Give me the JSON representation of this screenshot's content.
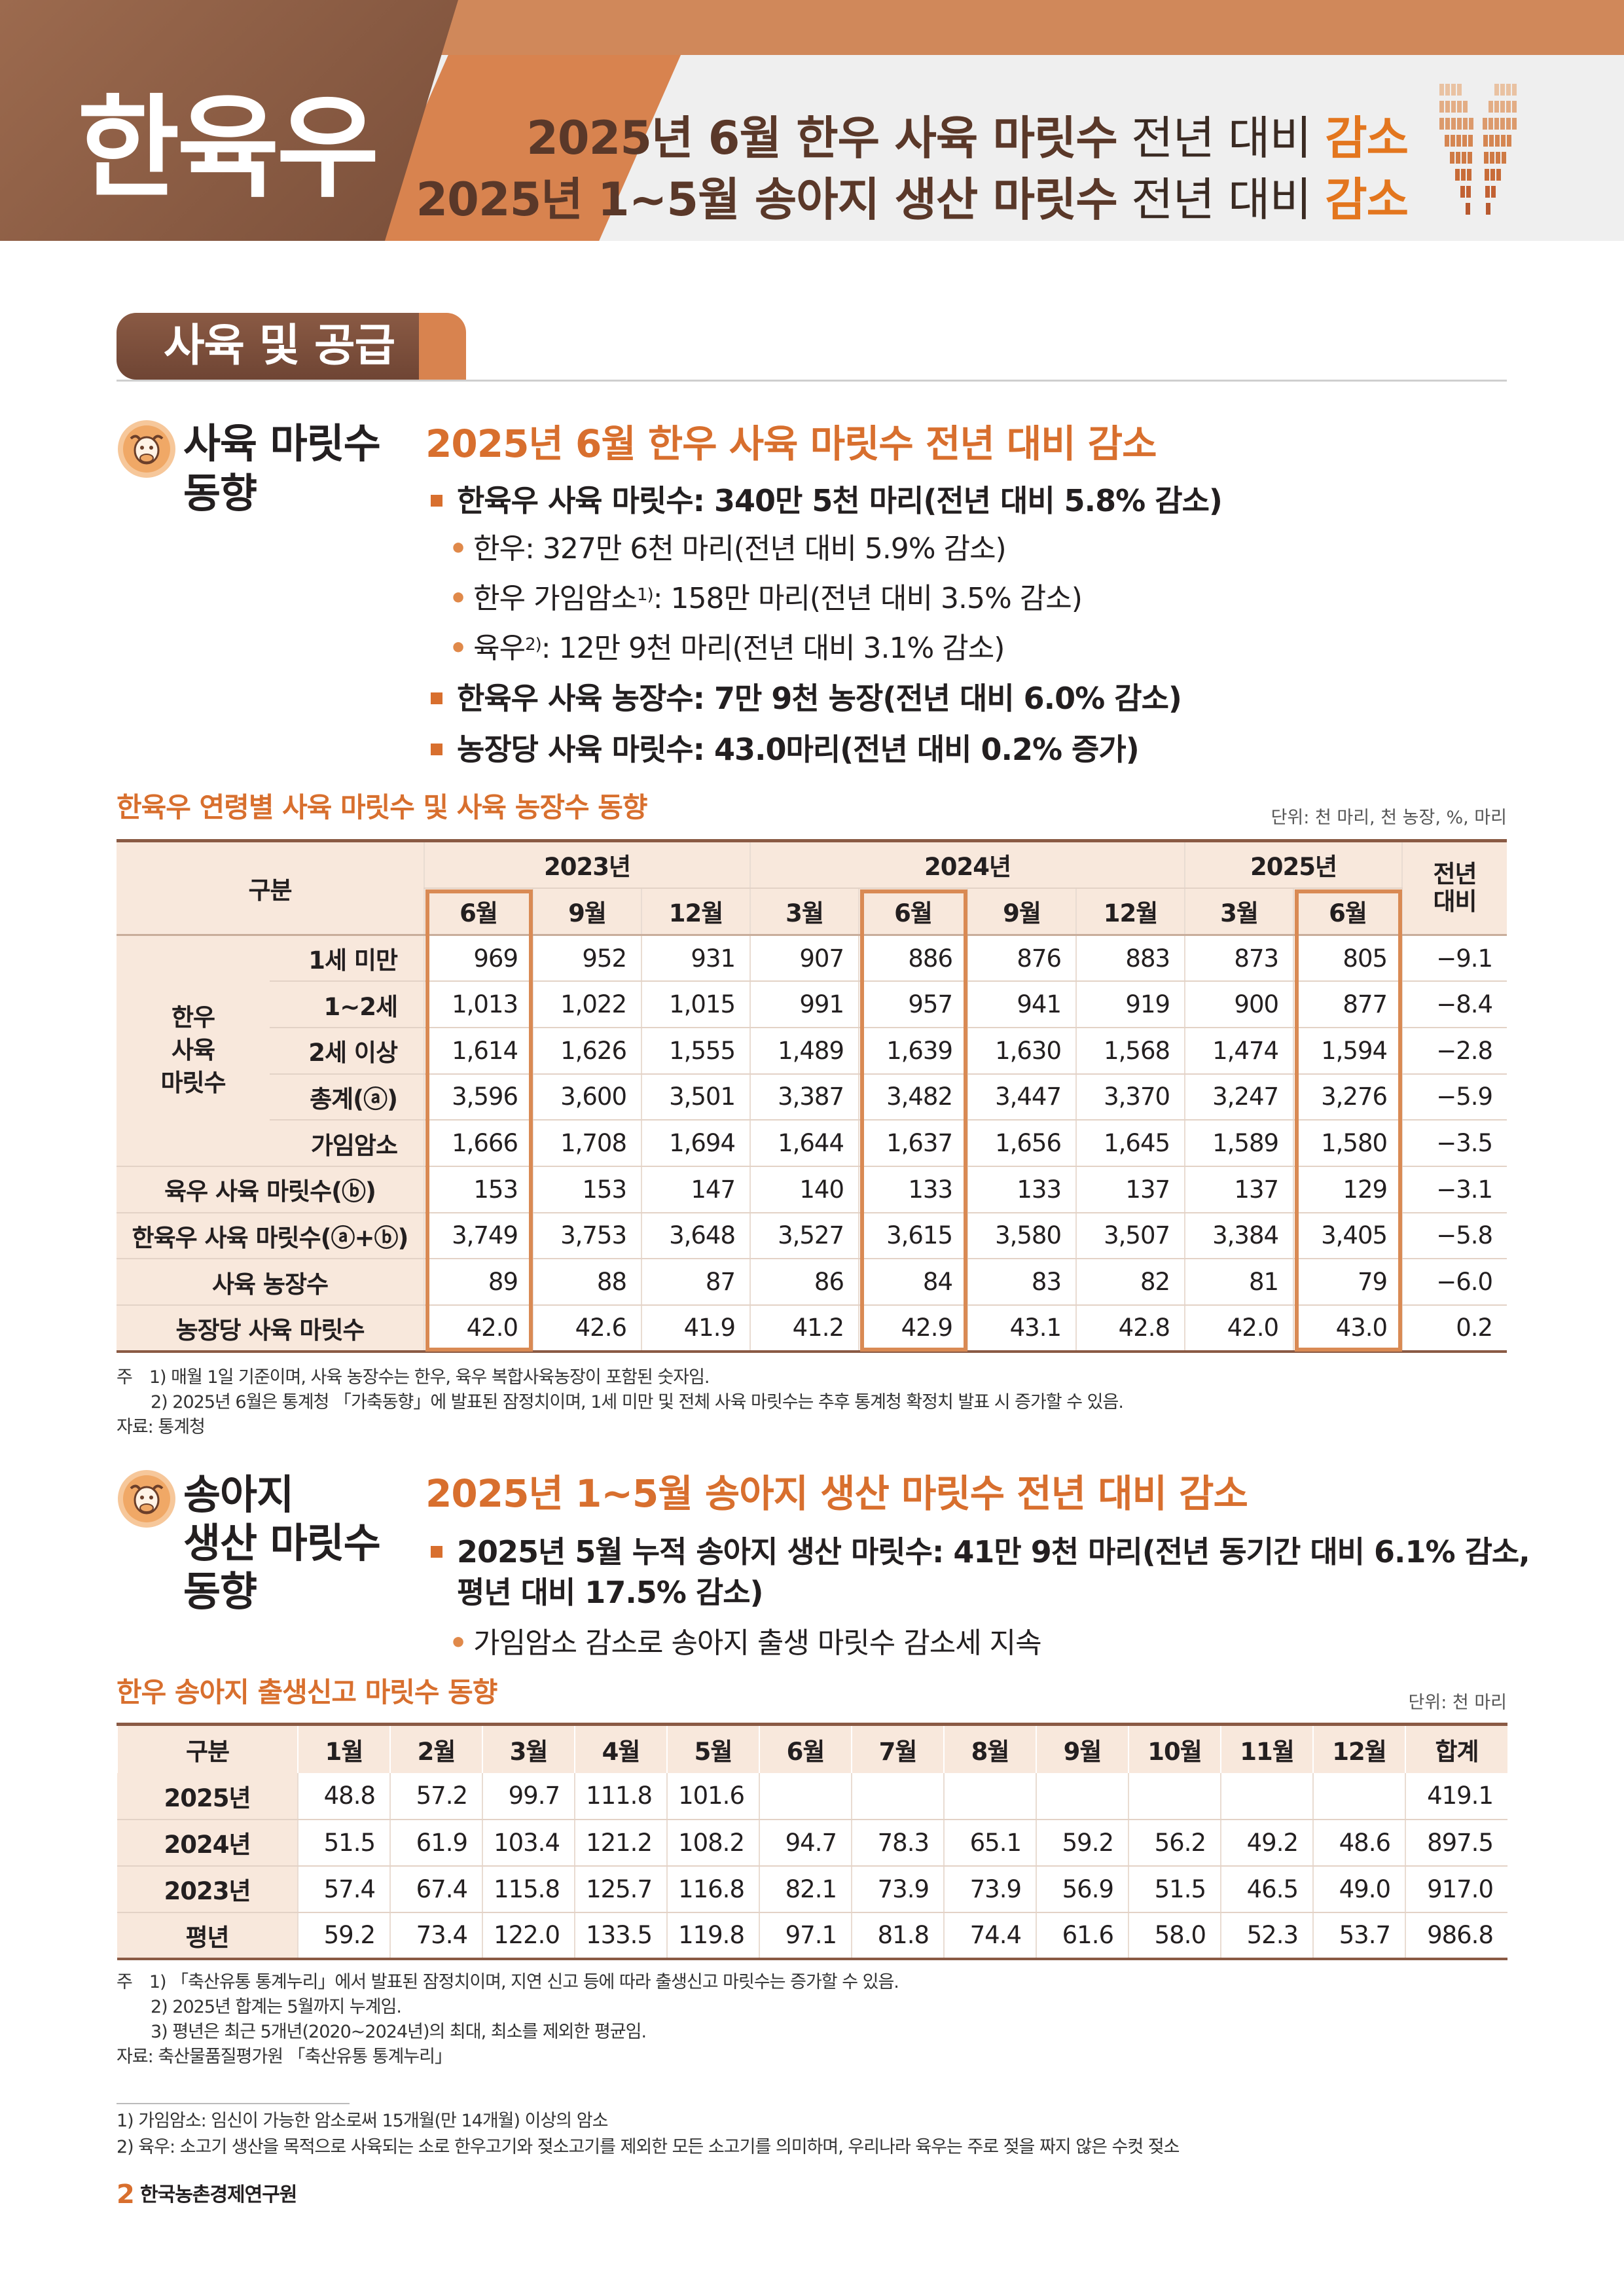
{
  "banner": {
    "brand": "한육우",
    "line1": {
      "bold": "2025년 6월 한우 사육 마릿수",
      "light": " 전년 대비 ",
      "hl": "감소"
    },
    "line2": {
      "bold": "2025년 1~5월 송아지 생산 마릿수",
      "light": " 전년 대비 ",
      "hl": "감소"
    }
  },
  "section": {
    "tag": "사육 및 공급"
  },
  "sub1": {
    "title_l1": "사육 마릿수",
    "title_l2": "동향",
    "headline": "2025년 6월 한우 사육 마릿수 전년 대비 감소",
    "b1": "한육우 사육 마릿수: 340만 5천 마리(전년 대비 5.8% 감소)",
    "s1": "한우: 327만 6천 마리(전년 대비 5.9% 감소)",
    "s2_a": "한우 가임암소",
    "s2_sup": "1)",
    "s2_b": ": 158만 마리(전년 대비 3.5% 감소)",
    "s3_a": "육우",
    "s3_sup": "2)",
    "s3_b": ": 12만 9천 마리(전년 대비 3.1% 감소)",
    "b2": "한육우 사육 농장수: 7만 9천 농장(전년 대비 6.0% 감소)",
    "b3": "농장당 사육 마릿수: 43.0마리(전년 대비 0.2% 증가)"
  },
  "table1": {
    "caption": "한육우 연령별 사육 마릿수 및 사육 농장수 동향",
    "unit": "단위: 천 마리, 천 농장, %, 마리",
    "corner": "구분",
    "years": [
      "2023년",
      "2024년",
      "2025년"
    ],
    "yoy_l1": "전년",
    "yoy_l2": "대비",
    "months": [
      "6월",
      "9월",
      "12월",
      "3월",
      "6월",
      "9월",
      "12월",
      "3월",
      "6월"
    ],
    "group_label": [
      "한우",
      "사육",
      "마릿수"
    ],
    "rows": [
      {
        "label": "1세 미만",
        "values": [
          "969",
          "952",
          "931",
          "907",
          "886",
          "876",
          "883",
          "873",
          "805"
        ],
        "yoy": "−9.1"
      },
      {
        "label": "1∼2세",
        "values": [
          "1,013",
          "1,022",
          "1,015",
          "991",
          "957",
          "941",
          "919",
          "900",
          "877"
        ],
        "yoy": "−8.4"
      },
      {
        "label": "2세 이상",
        "values": [
          "1,614",
          "1,626",
          "1,555",
          "1,489",
          "1,639",
          "1,630",
          "1,568",
          "1,474",
          "1,594"
        ],
        "yoy": "−2.8"
      },
      {
        "label": "총계(ⓐ)",
        "values": [
          "3,596",
          "3,600",
          "3,501",
          "3,387",
          "3,482",
          "3,447",
          "3,370",
          "3,247",
          "3,276"
        ],
        "yoy": "−5.9"
      },
      {
        "label": "가임암소",
        "values": [
          "1,666",
          "1,708",
          "1,694",
          "1,644",
          "1,637",
          "1,656",
          "1,645",
          "1,589",
          "1,580"
        ],
        "yoy": "−3.5"
      },
      {
        "label": "육우 사육 마릿수(ⓑ)",
        "values": [
          "153",
          "153",
          "147",
          "140",
          "133",
          "133",
          "137",
          "137",
          "129"
        ],
        "yoy": "−3.1"
      },
      {
        "label": "한육우 사육 마릿수(ⓐ+ⓑ)",
        "values": [
          "3,749",
          "3,753",
          "3,648",
          "3,527",
          "3,615",
          "3,580",
          "3,507",
          "3,384",
          "3,405"
        ],
        "yoy": "−5.8"
      },
      {
        "label": "사육 농장수",
        "values": [
          "89",
          "88",
          "87",
          "86",
          "84",
          "83",
          "82",
          "81",
          "79"
        ],
        "yoy": "−6.0"
      },
      {
        "label": "농장당 사육 마릿수",
        "values": [
          "42.0",
          "42.6",
          "41.9",
          "41.2",
          "42.9",
          "43.1",
          "42.8",
          "42.0",
          "43.0"
        ],
        "yoy": "0.2"
      }
    ],
    "notes": [
      "주　1) 매월 1일 기준이며, 사육 농장수는 한우, 육우 복합사육농장이 포함된 숫자임.",
      "　　2) 2025년 6월은 통계청 「가축동향」에 발표된 잠정치이며, 1세 미만 및 전체 사육 마릿수는 추후 통계청 확정치 발표 시 증가할 수 있음.",
      "자료: 통계청"
    ]
  },
  "sub2": {
    "title_l1": "송아지",
    "title_l2": "생산 마릿수",
    "title_l3": "동향",
    "headline": "2025년 1~5월 송아지 생산 마릿수 전년 대비 감소",
    "b1_l1": "2025년 5월 누적 송아지 생산 마릿수: 41만 9천 마리(전년 동기간 대비 6.1% 감소,",
    "b1_l2": "평년 대비 17.5% 감소)",
    "s1": "가임암소 감소로 송아지 출생 마릿수 감소세 지속"
  },
  "table2": {
    "caption": "한우 송아지 출생신고 마릿수 동향",
    "unit": "단위: 천 마리",
    "headers": [
      "구분",
      "1월",
      "2월",
      "3월",
      "4월",
      "5월",
      "6월",
      "7월",
      "8월",
      "9월",
      "10월",
      "11월",
      "12월",
      "합계"
    ],
    "rows": [
      {
        "label": "2025년",
        "values": [
          "48.8",
          "57.2",
          "99.7",
          "111.8",
          "101.6",
          "",
          "",
          "",
          "",
          "",
          "",
          ""
        ],
        "total": "419.1"
      },
      {
        "label": "2024년",
        "values": [
          "51.5",
          "61.9",
          "103.4",
          "121.2",
          "108.2",
          "94.7",
          "78.3",
          "65.1",
          "59.2",
          "56.2",
          "49.2",
          "48.6"
        ],
        "total": "897.5"
      },
      {
        "label": "2023년",
        "values": [
          "57.4",
          "67.4",
          "115.8",
          "125.7",
          "116.8",
          "82.1",
          "73.9",
          "73.9",
          "56.9",
          "51.5",
          "46.5",
          "49.0"
        ],
        "total": "917.0"
      },
      {
        "label": "평년",
        "values": [
          "59.2",
          "73.4",
          "122.0",
          "133.5",
          "119.8",
          "97.1",
          "81.8",
          "74.4",
          "61.6",
          "58.0",
          "52.3",
          "53.7"
        ],
        "total": "986.8"
      }
    ],
    "notes": [
      "주　1) 「축산유통 통계누리」에서 발표된 잠정치이며, 지연 신고 등에 따라 출생신고 마릿수는 증가할 수 있음.",
      "　　2) 2025년 합계는 5월까지 누계임.",
      "　　3) 평년은 최근 5개년(2020~2024년)의 최대, 최소를 제외한 평균임.",
      "자료: 축산물품질평가원 「축산유통 통계누리」"
    ]
  },
  "footnotes": [
    "1) 가임암소: 임신이 가능한 암소로써 15개월(만 14개월) 이상의 암소",
    "2) 육우: 소고기 생산을 목적으로 사육되는 소로 한우고기와 젖소고기를 제외한 모든 소고기를 의미하며, 우리나라 육우는 주로 젖을 짜지 않은 수컷 젖소"
  ],
  "footer": {
    "page": "2",
    "org": "한국농촌경제연구원"
  },
  "colors": {
    "accent": "#d86f2e",
    "brown": "#8a5a44",
    "header_fill": "#f8e8dc",
    "highlight_box": "#d98a54"
  }
}
